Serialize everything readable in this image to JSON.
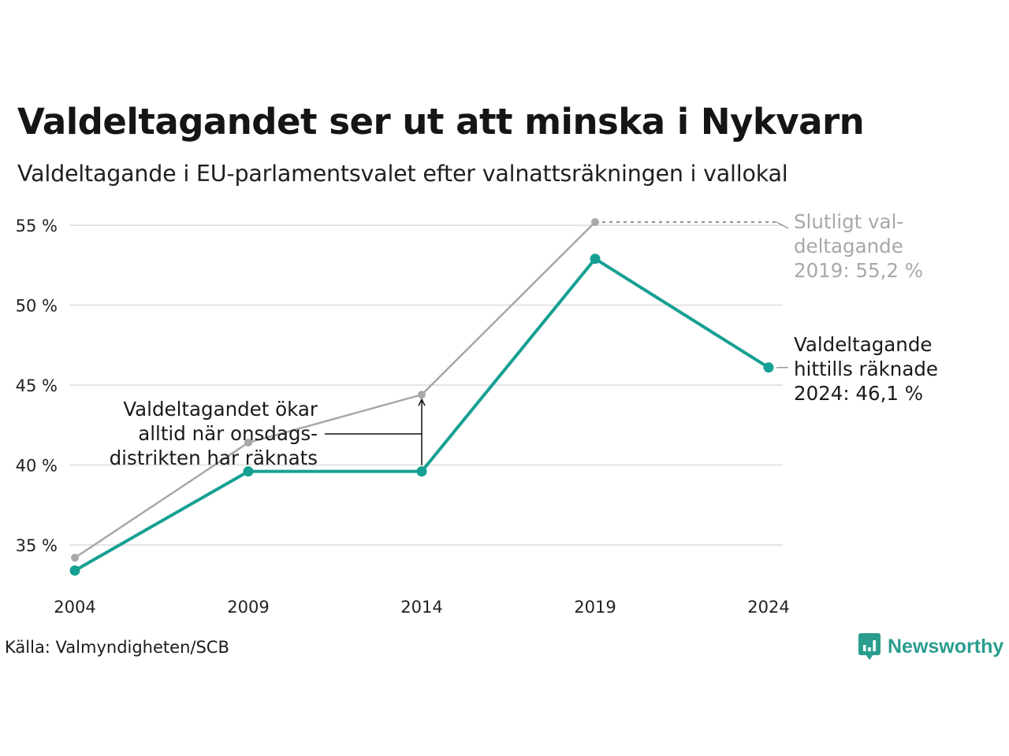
{
  "title": "Valdeltagandet ser ut att minska i Nykvarn",
  "subtitle": "Valdeltagande i EU-parlamentsvalet efter valnattsräkningen i vallokal",
  "source": "Källa: Valmyndigheten/SCB",
  "brand": {
    "name": "Newsworthy",
    "icon": "newsworthy-logo-icon",
    "color": "#2a9d8f"
  },
  "colors": {
    "teal": "#16a093",
    "gray": "#a8a8a8",
    "grid": "#e4e4e4"
  },
  "chart_data": {
    "type": "line",
    "x": [
      2004,
      2009,
      2014,
      2019,
      2024
    ],
    "xticks": [
      "2004",
      "2009",
      "2014",
      "2019",
      "2024"
    ],
    "yticks": [
      35,
      40,
      45,
      50,
      55
    ],
    "ytick_labels": [
      "35 %",
      "40 %",
      "45 %",
      "50 %",
      "55 %"
    ],
    "ylim": [
      32.5,
      55.5
    ],
    "grid": true,
    "series": [
      {
        "key": "final",
        "color": "#a8a8a8",
        "values": [
          34.2,
          41.4,
          44.4,
          55.2,
          null
        ]
      },
      {
        "key": "valnatt",
        "color": "#16a093",
        "values": [
          33.4,
          39.6,
          39.6,
          52.9,
          46.1
        ]
      }
    ],
    "annotations": [
      {
        "key": "final_2019",
        "lines": [
          "Slutligt val-",
          "deltagande",
          "2019: 55,2 %"
        ],
        "color": "#a8a8a8"
      },
      {
        "key": "current_2024",
        "lines": [
          "Valdeltagande",
          "hittills räknade",
          "2024: 46,1 %"
        ],
        "color": "#1a1a1a"
      },
      {
        "key": "increase_note",
        "lines": [
          "Valdeltagandet ökar",
          "alltid när onsdags-",
          "distrikten har räknats"
        ],
        "color": "#1a1a1a"
      }
    ]
  }
}
